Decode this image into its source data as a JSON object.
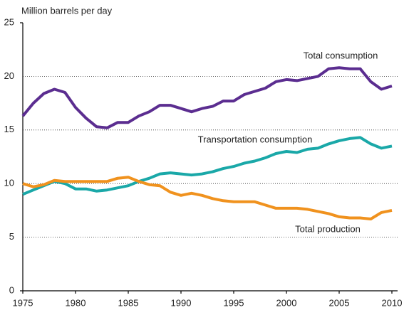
{
  "chart_data": {
    "type": "line",
    "y_label": "Million barrels per day",
    "x": [
      1975,
      1976,
      1977,
      1978,
      1979,
      1980,
      1981,
      1982,
      1983,
      1984,
      1985,
      1986,
      1987,
      1988,
      1989,
      1990,
      1991,
      1992,
      1993,
      1994,
      1995,
      1996,
      1997,
      1998,
      1999,
      2000,
      2001,
      2002,
      2003,
      2004,
      2005,
      2006,
      2007,
      2008,
      2009,
      2010
    ],
    "series": [
      {
        "name": "Total consumption",
        "color": "#5b2d90",
        "values": [
          16.3,
          17.5,
          18.4,
          18.8,
          18.5,
          17.1,
          16.1,
          15.3,
          15.2,
          15.7,
          15.7,
          16.3,
          16.7,
          17.3,
          17.3,
          17.0,
          16.7,
          17.0,
          17.2,
          17.7,
          17.7,
          18.3,
          18.6,
          18.9,
          19.5,
          19.7,
          19.6,
          19.8,
          20.0,
          20.7,
          20.8,
          20.7,
          20.7,
          19.5,
          18.8,
          19.1
        ]
      },
      {
        "name": "Transportation consumption",
        "color": "#1aa8a8",
        "values": [
          9.0,
          9.4,
          9.8,
          10.2,
          10.0,
          9.5,
          9.5,
          9.3,
          9.4,
          9.6,
          9.8,
          10.2,
          10.5,
          10.9,
          11.0,
          10.9,
          10.8,
          10.9,
          11.1,
          11.4,
          11.6,
          11.9,
          12.1,
          12.4,
          12.8,
          13.0,
          12.9,
          13.2,
          13.3,
          13.7,
          14.0,
          14.2,
          14.3,
          13.7,
          13.3,
          13.5
        ]
      },
      {
        "name": "Total production",
        "color": "#f0921e",
        "values": [
          10.0,
          9.7,
          9.9,
          10.3,
          10.2,
          10.2,
          10.2,
          10.2,
          10.2,
          10.5,
          10.6,
          10.2,
          9.9,
          9.8,
          9.2,
          8.9,
          9.1,
          8.9,
          8.6,
          8.4,
          8.3,
          8.3,
          8.3,
          8.0,
          7.7,
          7.7,
          7.7,
          7.6,
          7.4,
          7.2,
          6.9,
          6.8,
          6.8,
          6.7,
          7.3,
          7.5
        ]
      }
    ],
    "xlim": [
      1975,
      2010
    ],
    "xticks": [
      1975,
      1980,
      1985,
      1990,
      1995,
      2000,
      2005,
      2010
    ],
    "ylim": [
      0,
      25
    ],
    "yticks": [
      0,
      5,
      10,
      15,
      20,
      25
    ],
    "grid": true
  }
}
